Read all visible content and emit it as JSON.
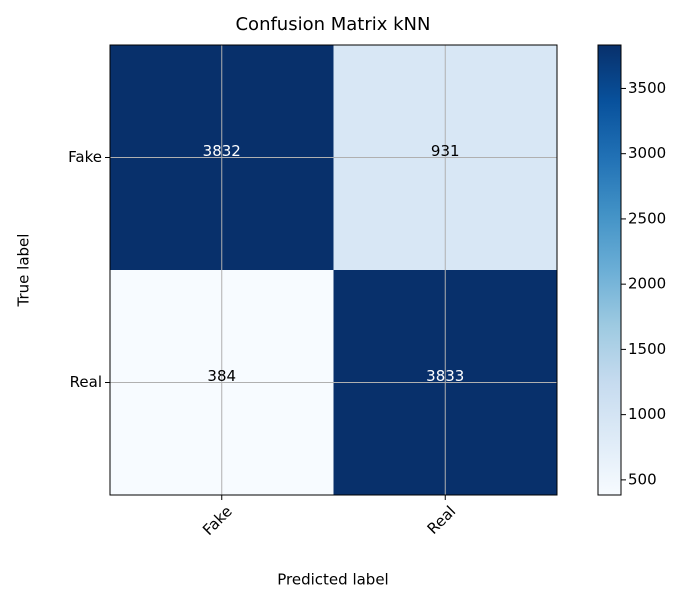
{
  "chart_data": {
    "type": "heatmap",
    "title": "Confusion Matrix kNN",
    "xlabel": "Predicted label",
    "ylabel": "True label",
    "x_categories": [
      "Fake",
      "Real"
    ],
    "y_categories": [
      "Fake",
      "Real"
    ],
    "values": [
      [
        3832,
        931
      ],
      [
        384,
        3833
      ]
    ],
    "colormap": "Blues",
    "grid": true,
    "colorbar_lim": [
      384,
      3833
    ],
    "colorbar_ticks": [
      500,
      1000,
      1500,
      2000,
      2500,
      3000,
      3500
    ]
  }
}
